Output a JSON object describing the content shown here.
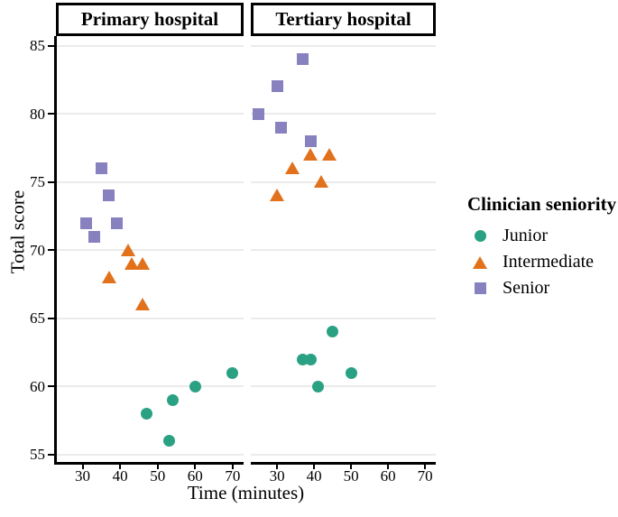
{
  "figure": {
    "x_axis_title": "Time (minutes)",
    "y_axis_title": "Total score",
    "colors": {
      "junior_green": "#2AA183",
      "intermediate_orange": "#E2711C",
      "senior_purple": "#8781C0",
      "gridline": "#EBEBEB",
      "axis": "#000000",
      "background": "#FFFFFF"
    }
  },
  "legend": {
    "title": "Clinician seniority",
    "items": [
      {
        "label": "Junior",
        "shape": "circle",
        "color": "#2AA183"
      },
      {
        "label": "Intermediate",
        "shape": "triangle",
        "color": "#E2711C"
      },
      {
        "label": "Senior",
        "shape": "square",
        "color": "#8781C0"
      }
    ]
  },
  "chart_data": {
    "type": "scatter",
    "xlabel": "Time (minutes)",
    "ylabel": "Total score",
    "x_breaks": [
      30,
      40,
      50,
      60,
      70
    ],
    "y_breaks": [
      55,
      60,
      65,
      70,
      75,
      80,
      85
    ],
    "xlim": [
      22.9,
      72.9
    ],
    "ylim": [
      54.4,
      85.7
    ],
    "grid": "horizontal-major-only",
    "legend_title": "Clinician seniority",
    "legend_position": "right",
    "facets": [
      {
        "label": "Primary hospital",
        "series": [
          {
            "name": "Junior",
            "shape": "circle",
            "color": "#2AA183",
            "points": [
              [
                47,
                58
              ],
              [
                53,
                56
              ],
              [
                54,
                59
              ],
              [
                60,
                60
              ],
              [
                70,
                61
              ]
            ]
          },
          {
            "name": "Intermediate",
            "shape": "triangle",
            "color": "#E2711C",
            "points": [
              [
                37,
                68
              ],
              [
                42,
                70
              ],
              [
                43,
                69
              ],
              [
                46,
                69
              ],
              [
                46,
                66
              ]
            ]
          },
          {
            "name": "Senior",
            "shape": "square",
            "color": "#8781C0",
            "points": [
              [
                31,
                72
              ],
              [
                33,
                71
              ],
              [
                35,
                76
              ],
              [
                37,
                74
              ],
              [
                39,
                72
              ]
            ]
          }
        ]
      },
      {
        "label": "Tertiary hospital",
        "series": [
          {
            "name": "Junior",
            "shape": "circle",
            "color": "#2AA183",
            "points": [
              [
                37,
                62
              ],
              [
                39,
                62
              ],
              [
                41,
                60
              ],
              [
                45,
                64
              ],
              [
                50,
                61
              ]
            ]
          },
          {
            "name": "Intermediate",
            "shape": "triangle",
            "color": "#E2711C",
            "points": [
              [
                30,
                74
              ],
              [
                34,
                76
              ],
              [
                39,
                77
              ],
              [
                42,
                75
              ],
              [
                44,
                77
              ]
            ]
          },
          {
            "name": "Senior",
            "shape": "square",
            "color": "#8781C0",
            "points": [
              [
                25,
                80
              ],
              [
                30,
                82
              ],
              [
                31,
                79
              ],
              [
                37,
                84
              ],
              [
                39,
                78
              ]
            ]
          }
        ]
      }
    ]
  }
}
